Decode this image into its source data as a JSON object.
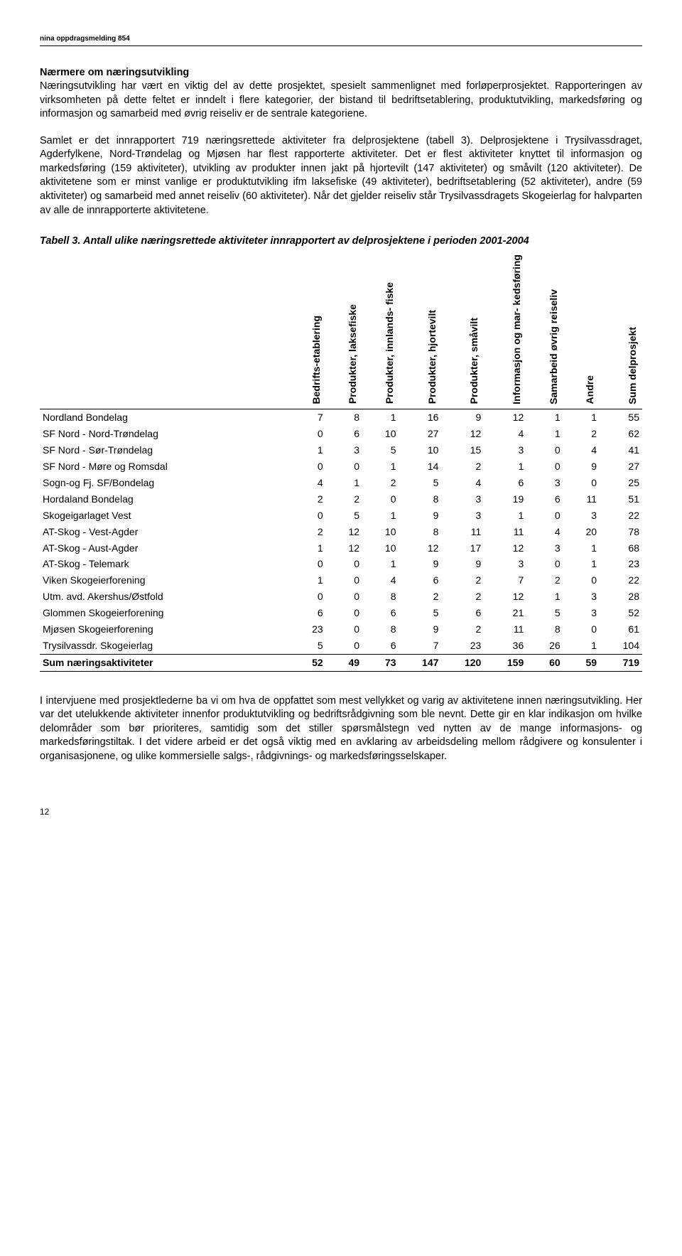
{
  "header_note": "nina oppdragsmelding 854",
  "heading": "Nærmere om næringsutvikling",
  "para1": "Næringsutvikling har vært en viktig del av dette prosjektet, spesielt sammenlignet med forløperprosjektet. Rapporteringen av virksomheten på dette feltet er inndelt i flere kategorier, der bistand til bedriftsetablering, produktutvikling, markedsføring og informasjon og samarbeid med øvrig reiseliv er de sentrale kategoriene.",
  "para2": "Samlet er det innrapportert 719 næringsrettede aktiviteter fra delprosjektene (tabell 3). Delprosjektene i Trysilvassdraget, Agderfylkene, Nord-Trøndelag og Mjøsen har flest rapporterte aktiviteter. Det er flest aktiviteter knyttet til informasjon og markedsføring (159 aktiviteter), utvikling av produkter innen jakt på hjortevilt (147 aktiviteter) og småvilt (120 aktiviteter). De aktivitetene som er minst vanlige er produktutvikling ifm laksefiske (49 aktiviteter), bedriftsetablering (52 aktiviteter), andre (59 aktiviteter) og samarbeid med annet reiseliv (60 aktiviteter). Når det gjelder reiseliv står Trysilvassdragets Skogeierlag for halvparten av alle de innrapporterte aktivitetene.",
  "table_caption": "Tabell 3. Antall ulike næringsrettede aktiviteter innrapportert av delprosjektene i perioden 2001-2004",
  "table": {
    "columns": [
      "",
      "Bedrifts-etablering",
      "Produkter, laksefiske",
      "Produkter, innlands-\nfiske",
      "Produkter, hjortevilt",
      "Produkter, småvilt",
      "Informasjon og mar-\nkedsføring",
      "Samarbeid øvrig\nreiseliv",
      "Andre",
      "Sum delprosjekt"
    ],
    "rows": [
      [
        "Nordland Bondelag",
        7,
        8,
        1,
        16,
        9,
        12,
        1,
        1,
        55
      ],
      [
        "SF Nord - Nord-Trøndelag",
        0,
        6,
        10,
        27,
        12,
        4,
        1,
        2,
        62
      ],
      [
        "SF Nord - Sør-Trøndelag",
        1,
        3,
        5,
        10,
        15,
        3,
        0,
        4,
        41
      ],
      [
        "SF Nord - Møre og Romsdal",
        0,
        0,
        1,
        14,
        2,
        1,
        0,
        9,
        27
      ],
      [
        "Sogn-og Fj. SF/Bondelag",
        4,
        1,
        2,
        5,
        4,
        6,
        3,
        0,
        25
      ],
      [
        "Hordaland Bondelag",
        2,
        2,
        0,
        8,
        3,
        19,
        6,
        11,
        51
      ],
      [
        "Skogeigarlaget Vest",
        0,
        5,
        1,
        9,
        3,
        1,
        0,
        3,
        22
      ],
      [
        "AT-Skog - Vest-Agder",
        2,
        12,
        10,
        8,
        11,
        11,
        4,
        20,
        78
      ],
      [
        "AT-Skog - Aust-Agder",
        1,
        12,
        10,
        12,
        17,
        12,
        3,
        1,
        68
      ],
      [
        "AT-Skog - Telemark",
        0,
        0,
        1,
        9,
        9,
        3,
        0,
        1,
        23
      ],
      [
        "Viken Skogeierforening",
        1,
        0,
        4,
        6,
        2,
        7,
        2,
        0,
        22
      ],
      [
        "Utm. avd. Akershus/Østfold",
        0,
        0,
        8,
        2,
        2,
        12,
        1,
        3,
        28
      ],
      [
        "Glommen Skogeierforening",
        6,
        0,
        6,
        5,
        6,
        21,
        5,
        3,
        52
      ],
      [
        "Mjøsen Skogeierforening",
        23,
        0,
        8,
        9,
        2,
        11,
        8,
        0,
        61
      ],
      [
        "Trysilvassdr. Skogeierlag",
        5,
        0,
        6,
        7,
        23,
        36,
        26,
        1,
        104
      ]
    ],
    "sum_row": [
      "Sum næringsaktiviteter",
      52,
      49,
      73,
      147,
      120,
      159,
      60,
      59,
      719
    ]
  },
  "para3": "I intervjuene med prosjektlederne ba vi om hva de oppfattet som mest vellykket og varig av aktivitetene innen næringsutvikling. Her var det utelukkende aktiviteter innenfor produktutvikling og bedriftsrådgivning som ble nevnt. Dette gir en klar indikasjon om hvilke delområder som bør prioriteres, samtidig som det stiller spørsmålstegn ved nytten av de mange informasjons- og markedsføringstiltak. I det videre arbeid er det også viktig med en avklaring av arbeidsdeling mellom rådgivere og konsulenter i organisasjonene, og ulike kommersielle salgs-, rådgivnings- og markedsføringsselskaper.",
  "page_number": "12"
}
